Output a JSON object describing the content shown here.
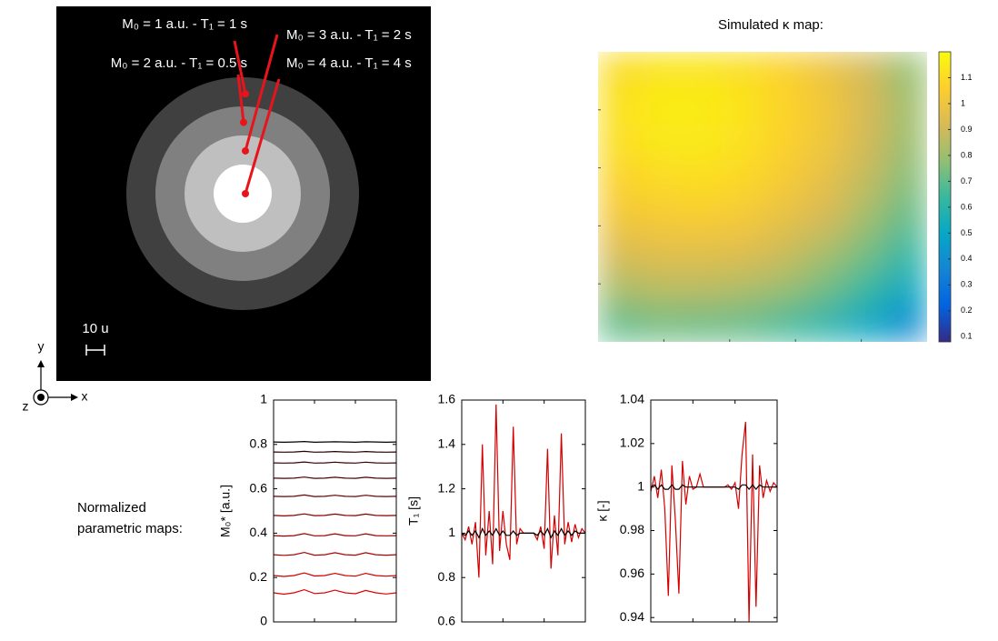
{
  "side_label": [
    "Normalized",
    "parametric maps:"
  ],
  "chart_data": [
    {
      "type": "phantom",
      "extent": 206,
      "rings": [
        {
          "radius": 64,
          "m0": 1,
          "label": "M₀ = 1 a.u.  -  T₁ = 1 s"
        },
        {
          "radius": 48,
          "m0": 2,
          "label": "M₀ = 2 a.u.  -  T₁ = 0.5 s"
        },
        {
          "radius": 32,
          "m0": 3,
          "label": "M₀ = 3 a.u.  -  T₁ = 2 s"
        },
        {
          "radius": 16,
          "m0": 4,
          "label": "M₀ = 4 a.u.  -  T₁ = 4 s"
        }
      ],
      "pointer_color": "#e8141b",
      "scale_bar": {
        "length": 10,
        "label": "10 u"
      },
      "axis_labels": {
        "x": "x",
        "y": "y",
        "z": "z"
      }
    },
    {
      "type": "heatmap",
      "title": "Simulated κ map:",
      "clim": [
        0.08,
        1.2
      ],
      "cticks": [
        0.1,
        0.2,
        0.3,
        0.4,
        0.5,
        0.6,
        0.7,
        0.8,
        0.9,
        1,
        1.1
      ],
      "colormap": [
        "#352a87",
        "#0363e1",
        "#1485d4",
        "#06a7c6",
        "#38b99e",
        "#92bf73",
        "#d9ba56",
        "#fcce2e",
        "#f9fb0e"
      ],
      "z": [
        [
          1.1,
          1.13,
          1.13,
          1.11,
          1.07,
          1.0,
          0.91,
          0.79
        ],
        [
          1.12,
          1.15,
          1.15,
          1.13,
          1.08,
          1.02,
          0.92,
          0.81
        ],
        [
          1.11,
          1.14,
          1.14,
          1.12,
          1.07,
          1.01,
          0.91,
          0.8
        ],
        [
          1.07,
          1.1,
          1.11,
          1.09,
          1.04,
          0.97,
          0.88,
          0.76
        ],
        [
          1.02,
          1.04,
          1.05,
          1.03,
          0.98,
          0.92,
          0.82,
          0.71
        ],
        [
          0.93,
          0.96,
          0.96,
          0.95,
          0.9,
          0.83,
          0.74,
          0.63
        ],
        [
          0.83,
          0.86,
          0.86,
          0.84,
          0.8,
          0.73,
          0.64,
          0.52
        ],
        [
          0.7,
          0.73,
          0.72,
          0.71,
          0.66,
          0.6,
          0.51,
          0.39
        ]
      ]
    },
    {
      "type": "line",
      "ylabel": "M₀* [a.u.]",
      "x": [
        0,
        1,
        2,
        3,
        4,
        5,
        6,
        7,
        8,
        9,
        10,
        11,
        12
      ],
      "xlim": [
        0,
        12
      ],
      "ylim": [
        0,
        1
      ],
      "yticks": [
        0,
        0.2,
        0.4,
        0.6,
        0.8,
        1
      ],
      "series": [
        {
          "color": "#e00000",
          "values": [
            0.131,
            0.125,
            0.131,
            0.145,
            0.128,
            0.131,
            0.143,
            0.131,
            0.127,
            0.142,
            0.131,
            0.126,
            0.131
          ]
        },
        {
          "color": "#c80000",
          "values": [
            0.209,
            0.205,
            0.209,
            0.221,
            0.207,
            0.209,
            0.219,
            0.209,
            0.206,
            0.219,
            0.209,
            0.206,
            0.209
          ]
        },
        {
          "color": "#b00000",
          "values": [
            0.303,
            0.3,
            0.303,
            0.313,
            0.301,
            0.303,
            0.312,
            0.303,
            0.301,
            0.312,
            0.303,
            0.301,
            0.303
          ]
        },
        {
          "color": "#980000",
          "values": [
            0.389,
            0.387,
            0.389,
            0.398,
            0.388,
            0.389,
            0.397,
            0.389,
            0.388,
            0.397,
            0.389,
            0.388,
            0.389
          ]
        },
        {
          "color": "#800000",
          "values": [
            0.48,
            0.478,
            0.48,
            0.487,
            0.479,
            0.48,
            0.486,
            0.48,
            0.479,
            0.486,
            0.48,
            0.479,
            0.48
          ]
        },
        {
          "color": "#680000",
          "values": [
            0.566,
            0.565,
            0.566,
            0.572,
            0.565,
            0.566,
            0.571,
            0.566,
            0.565,
            0.571,
            0.566,
            0.565,
            0.566
          ]
        },
        {
          "color": "#500000",
          "values": [
            0.648,
            0.647,
            0.648,
            0.653,
            0.647,
            0.648,
            0.652,
            0.648,
            0.647,
            0.652,
            0.648,
            0.647,
            0.648
          ]
        },
        {
          "color": "#380000",
          "values": [
            0.717,
            0.716,
            0.717,
            0.721,
            0.716,
            0.717,
            0.72,
            0.717,
            0.716,
            0.72,
            0.717,
            0.716,
            0.717
          ]
        },
        {
          "color": "#200000",
          "values": [
            0.766,
            0.765,
            0.766,
            0.769,
            0.765,
            0.766,
            0.768,
            0.766,
            0.765,
            0.768,
            0.766,
            0.765,
            0.766
          ]
        },
        {
          "color": "#000000",
          "values": [
            0.811,
            0.81,
            0.811,
            0.813,
            0.81,
            0.811,
            0.812,
            0.811,
            0.81,
            0.812,
            0.811,
            0.81,
            0.811
          ]
        }
      ]
    },
    {
      "type": "line",
      "ylabel": "T₁ [s]",
      "x": [
        0,
        1,
        2,
        3,
        4,
        5,
        6,
        7,
        8,
        9,
        10,
        11,
        12,
        13,
        14,
        15,
        16,
        17,
        18,
        19,
        20,
        21,
        22,
        23,
        24,
        25,
        26,
        27,
        28,
        29,
        30,
        31,
        32,
        33,
        34,
        35,
        36
      ],
      "xlim": [
        0,
        36
      ],
      "ylim": [
        0.6,
        1.6
      ],
      "yticks": [
        0.6,
        0.8,
        1,
        1.2,
        1.4,
        1.6
      ],
      "series": [
        {
          "color": "#d40000",
          "values": [
            1.0,
            0.97,
            1.03,
            0.95,
            1.05,
            0.8,
            1.4,
            0.9,
            1.1,
            0.86,
            1.58,
            0.92,
            1.1,
            0.95,
            0.88,
            1.48,
            0.95,
            1.02,
            1.0,
            1.0,
            1.0,
            1.0,
            0.97,
            1.03,
            0.93,
            1.38,
            0.84,
            1.08,
            0.9,
            1.45,
            0.95,
            1.05,
            0.96,
            1.04,
            0.98,
            1.02,
            1.0
          ]
        },
        {
          "color": "#000000",
          "values": [
            1.0,
            0.99,
            1.01,
            0.99,
            1.01,
            0.98,
            1.02,
            0.99,
            1.01,
            0.99,
            1.02,
            0.99,
            1.01,
            0.99,
            0.99,
            1.01,
            0.99,
            1.0,
            1.0,
            1.0,
            1.0,
            1.0,
            0.99,
            1.01,
            0.99,
            1.02,
            0.98,
            1.01,
            0.99,
            1.02,
            0.99,
            1.01,
            0.99,
            1.01,
            1.0,
            1.0,
            1.0
          ]
        }
      ]
    },
    {
      "type": "line",
      "ylabel": "κ [-]",
      "x": [
        0,
        1,
        2,
        3,
        4,
        5,
        6,
        7,
        8,
        9,
        10,
        11,
        12,
        13,
        14,
        15,
        16,
        17,
        18,
        19,
        20,
        21,
        22,
        23,
        24,
        25,
        26,
        27,
        28,
        29,
        30,
        31,
        32,
        33,
        34,
        35,
        36
      ],
      "xlim": [
        0,
        36
      ],
      "ylim": [
        0.938,
        1.04
      ],
      "yticks": [
        0.94,
        0.96,
        0.98,
        1,
        1.02,
        1.04
      ],
      "series": [
        {
          "color": "#d40000",
          "values": [
            0.998,
            1.005,
            0.995,
            1.008,
            0.99,
            0.95,
            1.01,
            0.985,
            0.951,
            1.012,
            0.992,
            1.005,
            0.999,
            1.0,
            1.006,
            1.0,
            1.0,
            1.0,
            1.0,
            1.0,
            1.0,
            1.0,
            1.001,
            0.999,
            1.002,
            0.99,
            1.015,
            1.03,
            0.938,
            1.015,
            0.945,
            1.01,
            0.995,
            1.003,
            0.998,
            1.002,
            1.0
          ]
        },
        {
          "color": "#000000",
          "values": [
            1.0,
            1.001,
            0.999,
            1.001,
            0.999,
            0.999,
            1.001,
            0.999,
            0.999,
            1.001,
            1.0,
            1.0,
            1.0,
            1.0,
            1.0,
            1.0,
            1.0,
            1.0,
            1.0,
            1.0,
            1.0,
            1.0,
            1.0,
            1.0,
            1.0,
            0.999,
            1.001,
            1.001,
            0.999,
            1.001,
            0.999,
            1.001,
            1.0,
            1.0,
            1.0,
            1.0,
            1.0
          ]
        }
      ]
    }
  ]
}
